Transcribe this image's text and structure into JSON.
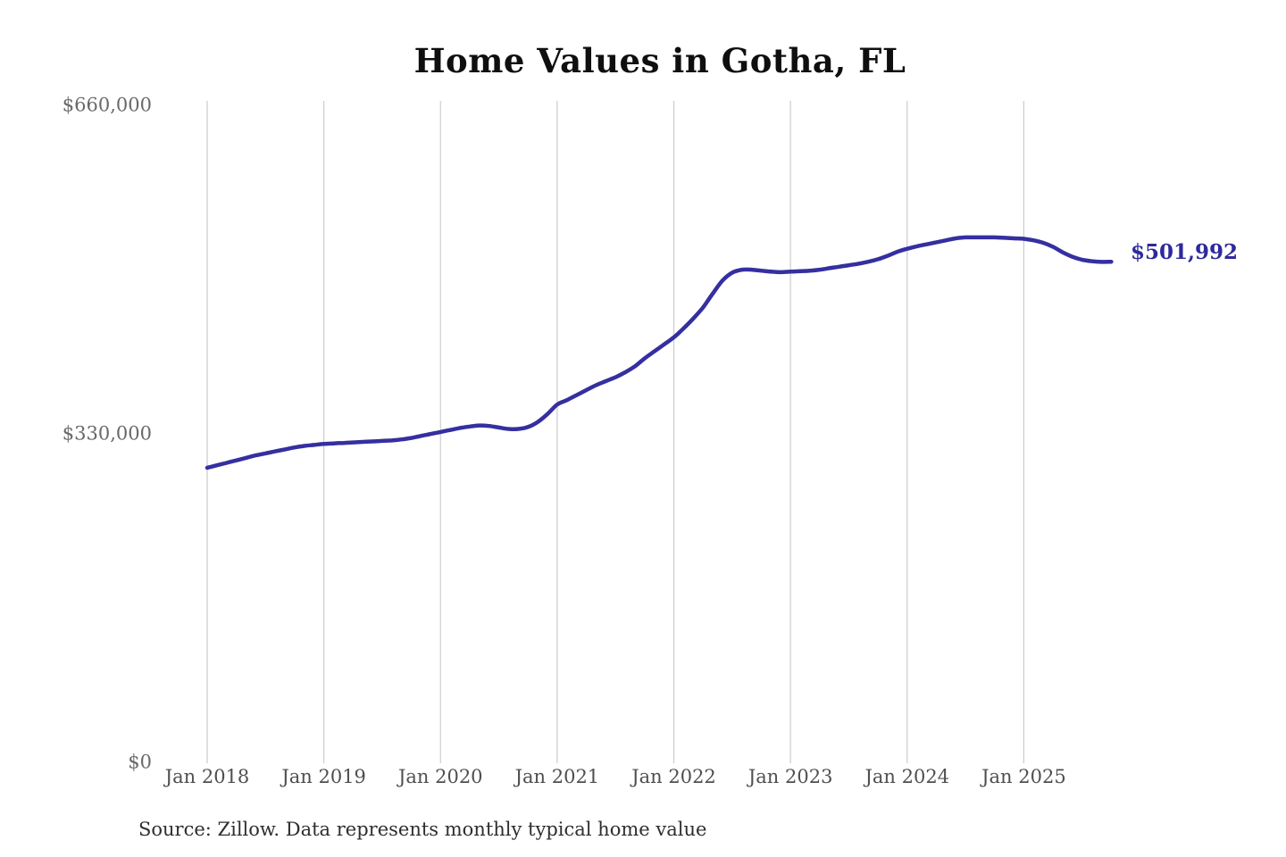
{
  "chart": {
    "title": "Home Values in Gotha, FL",
    "end_label": "$501,992",
    "source": "Source: Zillow. Data represents monthly typical home value"
  },
  "chart_data": {
    "type": "line",
    "title": "Home Values in Gotha, FL",
    "series_name": "Monthly typical home value",
    "start_month": "2018-01",
    "end_month": "2025-10",
    "final_value": 501992,
    "ylim": [
      0,
      660000
    ],
    "grid": "vertical-only",
    "legend": "none",
    "line_color": "#352fa0",
    "gridline_color": "#cccccc",
    "x_tick_color": "#4f4f4f",
    "y_tick_color": "#696969",
    "x_ticks": [
      {
        "label": "Jan 2018",
        "month_index": 0
      },
      {
        "label": "Jan 2019",
        "month_index": 12
      },
      {
        "label": "Jan 2020",
        "month_index": 24
      },
      {
        "label": "Jan 2021",
        "month_index": 36
      },
      {
        "label": "Jan 2022",
        "month_index": 48
      },
      {
        "label": "Jan 2023",
        "month_index": 60
      },
      {
        "label": "Jan 2024",
        "month_index": 72
      },
      {
        "label": "Jan 2025",
        "month_index": 84
      }
    ],
    "y_ticks": [
      {
        "label": "$0",
        "value": 0
      },
      {
        "label": "$330,000",
        "value": 330000
      },
      {
        "label": "$660,000",
        "value": 660000
      }
    ],
    "values": [
      295000,
      297500,
      300000,
      302500,
      305000,
      307500,
      309500,
      311500,
      313500,
      315500,
      317000,
      318000,
      319000,
      319500,
      320000,
      320500,
      321000,
      321500,
      322000,
      322500,
      323500,
      325000,
      327000,
      329000,
      331000,
      333000,
      335000,
      336500,
      337500,
      337000,
      335500,
      334000,
      334000,
      336000,
      341000,
      349000,
      358500,
      363000,
      368000,
      373000,
      378000,
      382000,
      386000,
      391000,
      397000,
      405000,
      412000,
      419000,
      426000,
      435000,
      445000,
      456000,
      470000,
      483000,
      491000,
      494000,
      494000,
      493000,
      492000,
      491500,
      492000,
      492500,
      493000,
      494000,
      495500,
      497000,
      498500,
      500000,
      502000,
      504500,
      508000,
      512000,
      515000,
      517500,
      519500,
      521500,
      523500,
      525500,
      526500,
      526500,
      526500,
      526500,
      526000,
      525500,
      525000,
      523500,
      521000,
      517000,
      511500,
      507000,
      504000,
      502500,
      501800,
      501992
    ]
  }
}
